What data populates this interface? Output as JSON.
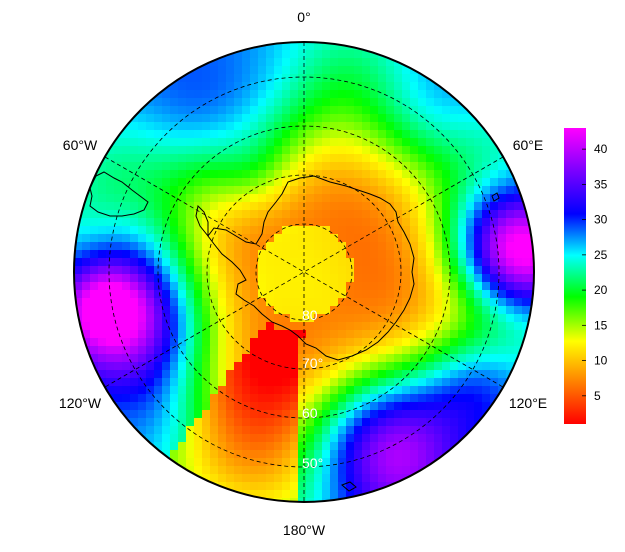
{
  "map": {
    "projection": "south-polar stereographic",
    "longitude_labels": {
      "top": "0°",
      "upper_left": "60°W",
      "upper_right": "60°E",
      "lower_left": "120°W",
      "lower_right": "120°E",
      "bottom": "180°W"
    },
    "latitude_labels": [
      "80",
      "70°",
      "60",
      "50°"
    ],
    "graticule_style": "dashed",
    "coastline": "Antarctica and southern tip of South America"
  },
  "colorbar": {
    "min": 1,
    "max": 43,
    "ticks": [
      "5",
      "10",
      "15",
      "20",
      "25",
      "30",
      "35",
      "40"
    ],
    "tick_values": [
      5,
      10,
      15,
      20,
      25,
      30,
      35,
      40
    ],
    "colors": [
      "#ff0000",
      "#ff7f00",
      "#ffff00",
      "#00ff00",
      "#00ffff",
      "#0000ff",
      "#7f00ff",
      "#ff00ff"
    ]
  }
}
